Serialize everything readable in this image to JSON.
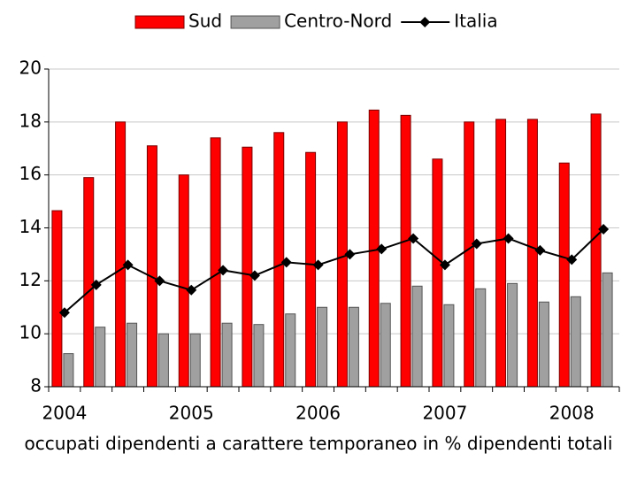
{
  "chart_data": {
    "type": "bar_line",
    "x_label": "occupati dipendenti a carattere temporaneo in % dipendenti totali",
    "categories": [
      "2004",
      null,
      null,
      null,
      "2005",
      null,
      null,
      null,
      "2006",
      null,
      null,
      null,
      "2007",
      null,
      null,
      null,
      "2008",
      null
    ],
    "series": [
      {
        "name": "Sud",
        "type": "bar",
        "color": "#ff0000",
        "values": [
          14.65,
          15.9,
          18.0,
          17.1,
          16.0,
          17.4,
          17.05,
          17.6,
          16.85,
          18.0,
          18.45,
          18.25,
          16.6,
          18.0,
          18.1,
          18.1,
          16.45,
          18.3
        ]
      },
      {
        "name": "Centro-Nord",
        "type": "bar",
        "color": "#a0a0a0",
        "values": [
          9.25,
          10.25,
          10.4,
          10.0,
          10.0,
          10.4,
          10.35,
          10.75,
          11.0,
          11.0,
          11.15,
          11.8,
          11.1,
          11.7,
          11.9,
          11.2,
          11.4,
          12.3
        ]
      },
      {
        "name": "Italia",
        "type": "line",
        "color": "#000000",
        "values": [
          10.8,
          11.85,
          12.6,
          12.0,
          11.65,
          12.4,
          12.2,
          12.7,
          12.6,
          13.0,
          13.2,
          13.6,
          12.6,
          13.4,
          13.6,
          13.15,
          12.8,
          13.95
        ]
      }
    ],
    "ylim": [
      8,
      20
    ],
    "yticks": [
      8,
      10,
      12,
      14,
      16,
      18,
      20
    ],
    "grid": true,
    "legend": "top"
  }
}
